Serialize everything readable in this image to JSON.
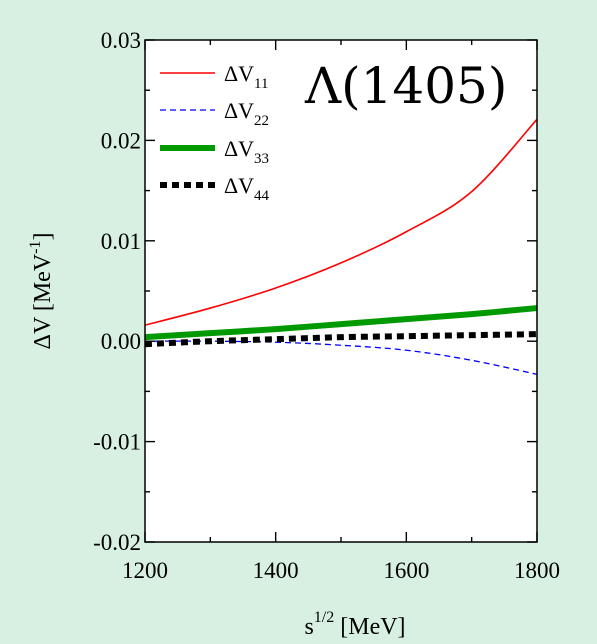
{
  "chart_data": {
    "type": "line",
    "title": "",
    "annotation": "Λ(1405)",
    "xlabel": {
      "base": "s",
      "sup": "1/2",
      "unit": " [MeV]"
    },
    "ylabel": {
      "text": "ΔV [MeV",
      "sup": "-1",
      "close": "]"
    },
    "xlim": [
      1200,
      1800
    ],
    "ylim": [
      -0.02,
      0.03
    ],
    "x_ticks": [
      1200,
      1400,
      1600,
      1800
    ],
    "x_tick_labels": [
      "1200",
      "1400",
      "1600",
      "1800"
    ],
    "y_ticks": [
      -0.02,
      -0.01,
      0.0,
      0.01,
      0.02,
      0.03
    ],
    "y_tick_labels": [
      "-0.02",
      "-0.01",
      "0.00",
      "0.01",
      "0.02",
      "0.03"
    ],
    "grid": false,
    "legend_position": "top-left",
    "series": [
      {
        "name": "ΔV",
        "sub": "11",
        "color": "#ff0000",
        "style": "solid",
        "x": [
          1200,
          1300,
          1400,
          1500,
          1600,
          1700,
          1800
        ],
        "y": [
          0.0016,
          0.0033,
          0.0053,
          0.0078,
          0.0109,
          0.0149,
          0.0221
        ]
      },
      {
        "name": "ΔV",
        "sub": "22",
        "color": "#0000ff",
        "style": "dashed",
        "x": [
          1200,
          1300,
          1400,
          1500,
          1600,
          1700,
          1800
        ],
        "y": [
          0.0,
          0.0,
          -0.0001,
          -0.0004,
          -0.0009,
          -0.0019,
          -0.0033
        ]
      },
      {
        "name": "ΔV",
        "sub": "33",
        "color": "#009900",
        "style": "thick",
        "x": [
          1200,
          1300,
          1400,
          1500,
          1600,
          1700,
          1800
        ],
        "y": [
          0.0004,
          0.0008,
          0.0012,
          0.0017,
          0.0022,
          0.0027,
          0.0033
        ]
      },
      {
        "name": "ΔV",
        "sub": "44",
        "color": "#000000",
        "style": "dotted",
        "x": [
          1200,
          1300,
          1400,
          1500,
          1600,
          1700,
          1800
        ],
        "y": [
          -0.0003,
          0.0,
          0.0002,
          0.0004,
          0.0005,
          0.0006,
          0.0007
        ]
      }
    ]
  }
}
